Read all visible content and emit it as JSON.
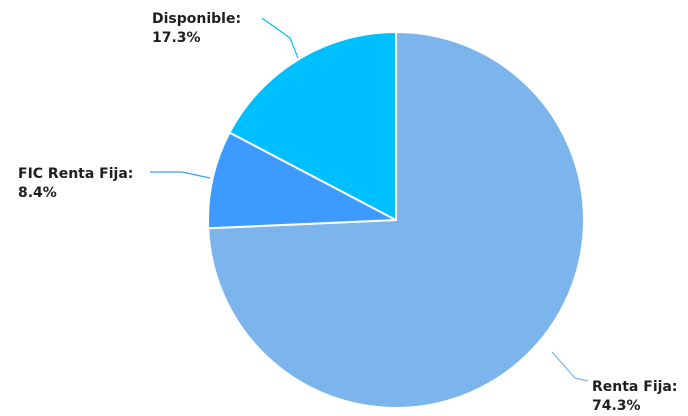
{
  "chart_data": {
    "type": "pie",
    "title": "",
    "slices": [
      {
        "name": "Renta Fija",
        "label": "Renta Fija:",
        "value": 74.3,
        "value_text": "74.3%",
        "color": "#7cb5ec"
      },
      {
        "name": "FIC Renta Fija",
        "label": "FIC Renta Fija:",
        "value": 8.4,
        "value_text": "8.4%",
        "color": "#3d9bff"
      },
      {
        "name": "Disponible",
        "label": "Disponible:",
        "value": 17.3,
        "value_text": "17.3%",
        "color": "#00bfff"
      }
    ],
    "start_angle_deg": 0,
    "direction": "clockwise",
    "legend": "none"
  }
}
